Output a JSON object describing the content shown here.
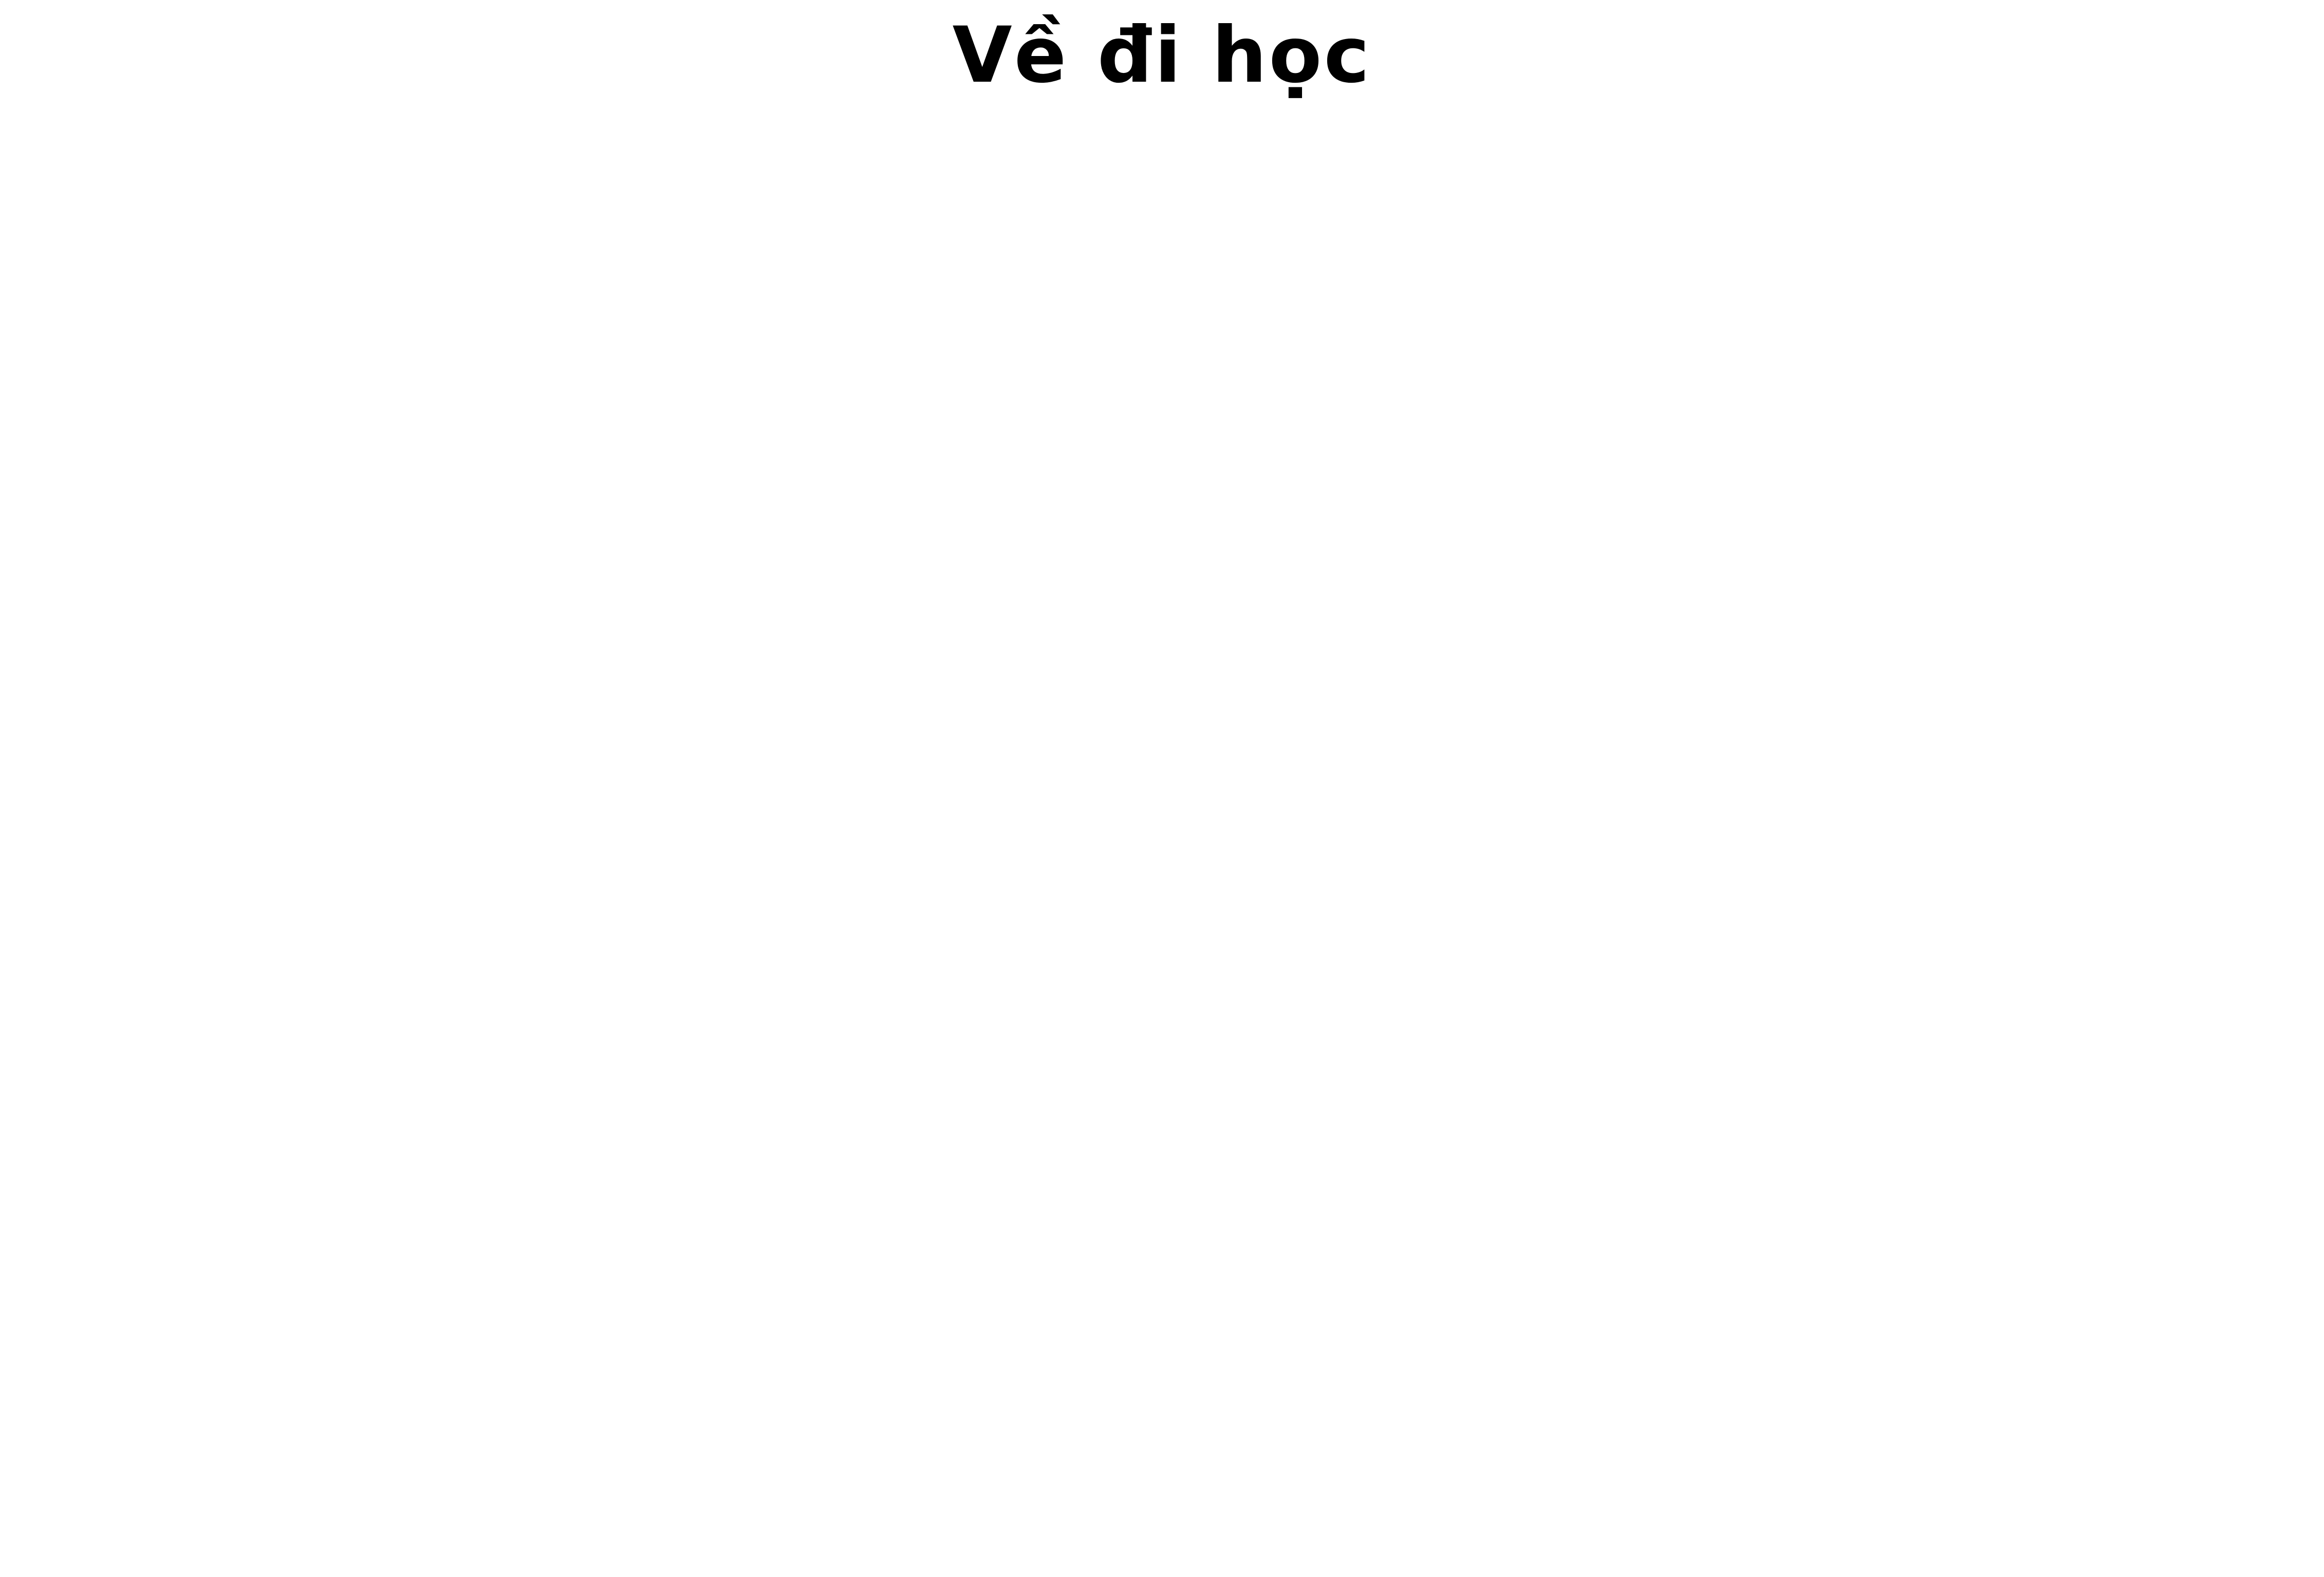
{
  "page": {
    "title": "Về đi học",
    "background_color": "#ffffff",
    "text_color": "#000000"
  }
}
